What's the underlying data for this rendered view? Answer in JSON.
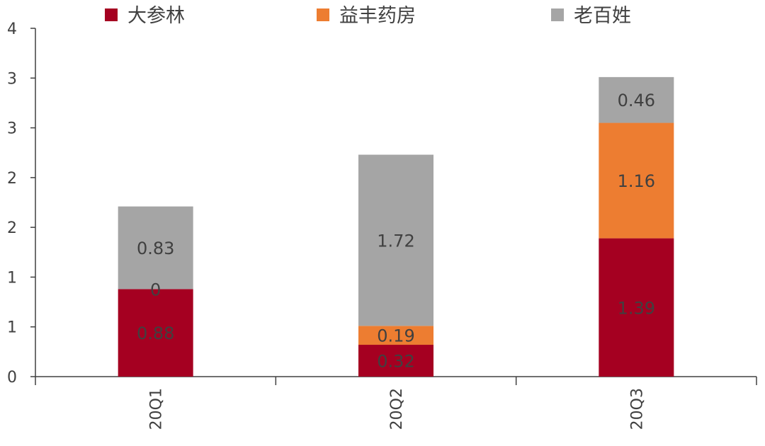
{
  "chart_data": {
    "type": "bar",
    "stacked": true,
    "categories": [
      "20Q1",
      "20Q2",
      "20Q3"
    ],
    "series": [
      {
        "name": "大参林",
        "color": "#A50021",
        "values": [
          0.88,
          0.32,
          1.39
        ],
        "labels": [
          "0.88",
          "0.32",
          "1.39"
        ]
      },
      {
        "name": "益丰药房",
        "color": "#ED7D31",
        "values": [
          0,
          0.19,
          1.16
        ],
        "labels": [
          "0",
          "0.19",
          "1.16"
        ]
      },
      {
        "name": "老百姓",
        "color": "#A5A5A5",
        "values": [
          0.83,
          1.72,
          0.46
        ],
        "labels": [
          "0.83",
          "1.72",
          "0.46"
        ]
      }
    ],
    "y_axis": {
      "range": [
        0,
        3.5
      ],
      "tick_values": [
        0,
        0.5,
        1,
        1.5,
        2,
        2.5,
        3,
        3.5
      ],
      "tick_labels": [
        "0",
        "1",
        "1",
        "2",
        "2",
        "3",
        "3",
        "4"
      ]
    },
    "legend_position": "top",
    "grid": false,
    "title": "",
    "xlabel": "",
    "ylabel": ""
  }
}
